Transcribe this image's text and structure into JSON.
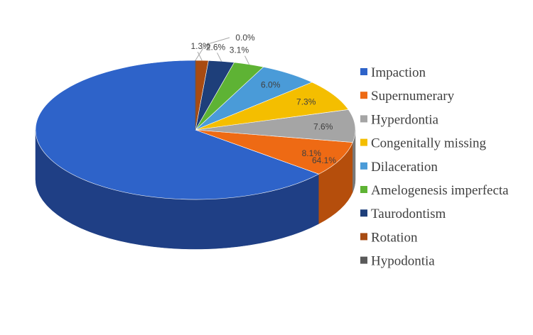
{
  "chart_data": {
    "type": "pie",
    "title": "",
    "style": "3d",
    "legend_position": "right",
    "series": [
      {
        "name": "Impaction",
        "value": 64.1,
        "label": "64.1%",
        "color": "#2E63C9",
        "side_color": "#1F3F85"
      },
      {
        "name": "Supernumerary",
        "value": 8.1,
        "label": "8.1%",
        "color": "#EE6A14",
        "side_color": "#B54E0C"
      },
      {
        "name": "Hyperdontia",
        "value": 7.6,
        "label": "7.6%",
        "color": "#A5A5A5",
        "side_color": "#787878"
      },
      {
        "name": "Congenitally missing",
        "value": 7.3,
        "label": "7.3%",
        "color": "#F4BE00",
        "side_color": "#B38C00"
      },
      {
        "name": "Dilaceration",
        "value": 6.0,
        "label": "6.0%",
        "color": "#4A9BD8",
        "side_color": "#2F6E9E"
      },
      {
        "name": "Amelogenesis imperfecta",
        "value": 3.1,
        "label": "3.1%",
        "color": "#5EB334",
        "side_color": "#3F7E21"
      },
      {
        "name": "Taurodontism",
        "value": 2.6,
        "label": "2.6%",
        "color": "#1E3F7A",
        "side_color": "#132A52"
      },
      {
        "name": "Rotation",
        "value": 1.3,
        "label": "1.3%",
        "color": "#A84B12",
        "side_color": "#73320B"
      },
      {
        "name": "Hypodontia",
        "value": 0.0,
        "label": "0.0%",
        "color": "#5A5A5A",
        "side_color": "#3C3C3C"
      }
    ]
  }
}
